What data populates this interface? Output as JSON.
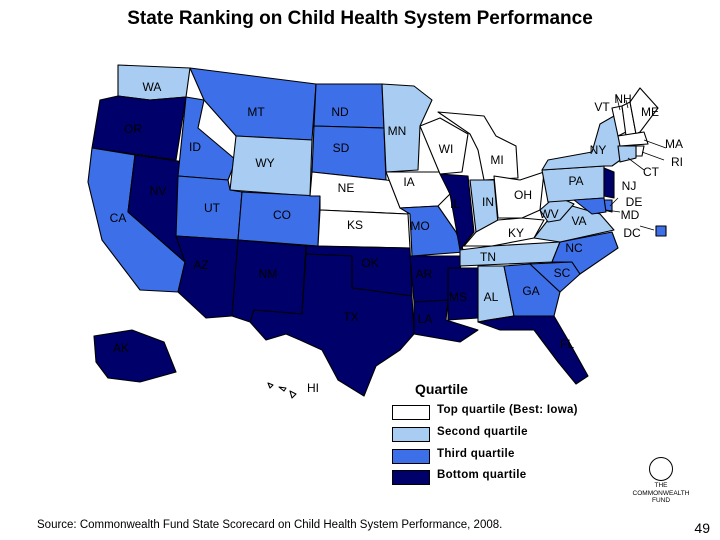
{
  "title": "State Ranking on Child Health System Performance",
  "colors": {
    "top": "#ffffff",
    "second": "#a9cdf2",
    "third": "#3d6fe8",
    "bottom": "#00006b"
  },
  "states": [
    {
      "code": "WA",
      "quartile": "second"
    },
    {
      "code": "OR",
      "quartile": "bottom"
    },
    {
      "code": "CA",
      "quartile": "third"
    },
    {
      "code": "NV",
      "quartile": "bottom"
    },
    {
      "code": "ID",
      "quartile": "third"
    },
    {
      "code": "MT",
      "quartile": "third"
    },
    {
      "code": "WY",
      "quartile": "second"
    },
    {
      "code": "UT",
      "quartile": "third"
    },
    {
      "code": "CO",
      "quartile": "third"
    },
    {
      "code": "AZ",
      "quartile": "bottom"
    },
    {
      "code": "NM",
      "quartile": "bottom"
    },
    {
      "code": "ND",
      "quartile": "third"
    },
    {
      "code": "SD",
      "quartile": "third"
    },
    {
      "code": "NE",
      "quartile": "top"
    },
    {
      "code": "KS",
      "quartile": "top"
    },
    {
      "code": "OK",
      "quartile": "bottom"
    },
    {
      "code": "TX",
      "quartile": "bottom"
    },
    {
      "code": "MN",
      "quartile": "second"
    },
    {
      "code": "IA",
      "quartile": "top"
    },
    {
      "code": "MO",
      "quartile": "third"
    },
    {
      "code": "AR",
      "quartile": "bottom"
    },
    {
      "code": "LA",
      "quartile": "bottom"
    },
    {
      "code": "WI",
      "quartile": "top"
    },
    {
      "code": "IL",
      "quartile": "bottom"
    },
    {
      "code": "MI",
      "quartile": "top"
    },
    {
      "code": "IN",
      "quartile": "second"
    },
    {
      "code": "OH",
      "quartile": "top"
    },
    {
      "code": "KY",
      "quartile": "top"
    },
    {
      "code": "TN",
      "quartile": "second"
    },
    {
      "code": "MS",
      "quartile": "bottom"
    },
    {
      "code": "AL",
      "quartile": "second"
    },
    {
      "code": "GA",
      "quartile": "third"
    },
    {
      "code": "FL",
      "quartile": "bottom"
    },
    {
      "code": "SC",
      "quartile": "third"
    },
    {
      "code": "NC",
      "quartile": "third"
    },
    {
      "code": "VA",
      "quartile": "second"
    },
    {
      "code": "WV",
      "quartile": "second"
    },
    {
      "code": "PA",
      "quartile": "second"
    },
    {
      "code": "NY",
      "quartile": "second"
    },
    {
      "code": "VT",
      "quartile": "top"
    },
    {
      "code": "NH",
      "quartile": "top"
    },
    {
      "code": "ME",
      "quartile": "top"
    },
    {
      "code": "MA",
      "quartile": "top"
    },
    {
      "code": "RI",
      "quartile": "top"
    },
    {
      "code": "CT",
      "quartile": "second"
    },
    {
      "code": "NJ",
      "quartile": "bottom"
    },
    {
      "code": "DE",
      "quartile": "third"
    },
    {
      "code": "MD",
      "quartile": "third"
    },
    {
      "code": "DC",
      "quartile": "third"
    },
    {
      "code": "AK",
      "quartile": "bottom"
    },
    {
      "code": "HI",
      "quartile": "top"
    }
  ],
  "legend": {
    "title": "Quartile",
    "items": [
      {
        "label": "Top quartile (Best: Iowa)",
        "quartile": "top"
      },
      {
        "label": "Second quartile",
        "quartile": "second"
      },
      {
        "label": "Third quartile",
        "quartile": "third"
      },
      {
        "label": "Bottom quartile",
        "quartile": "bottom"
      }
    ]
  },
  "source": "Source: Commonwealth Fund State Scorecard on Child Health System Performance, 2008.",
  "logo": {
    "line1": "THE",
    "line2": "COMMONWEALTH",
    "line3": "FUND"
  },
  "page_number": "49"
}
